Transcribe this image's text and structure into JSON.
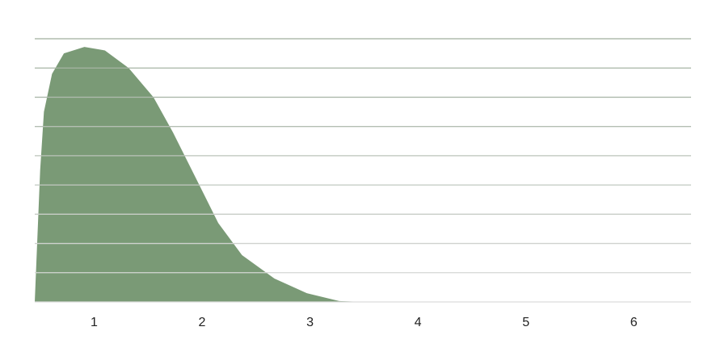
{
  "chart_data": {
    "type": "area",
    "x": [
      0.45,
      0.5,
      0.535,
      0.61,
      0.72,
      0.91,
      1.1,
      1.32,
      1.55,
      1.73,
      1.92,
      2.15,
      2.37,
      2.67,
      2.97,
      3.27,
      3.5,
      4,
      5,
      6,
      6.53
    ],
    "values": [
      0,
      0.45,
      0.65,
      0.78,
      0.85,
      0.872,
      0.86,
      0.8,
      0.7,
      0.58,
      0.44,
      0.27,
      0.16,
      0.08,
      0.03,
      0.003,
      0,
      0,
      0,
      0,
      0
    ],
    "color": "#7a9a76",
    "xlim": [
      0.45,
      6.53
    ],
    "xticks": [
      1,
      2,
      3,
      4,
      5,
      6
    ],
    "ylim": [
      0,
      0.9
    ],
    "yticks": [
      0,
      0.1,
      0.2,
      0.3,
      0.4,
      0.5,
      0.6,
      0.7,
      0.8,
      0.9
    ],
    "grid": true
  }
}
